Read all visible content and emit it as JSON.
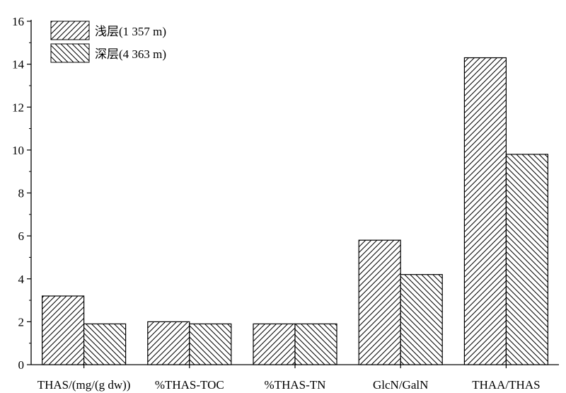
{
  "chart_data": {
    "type": "bar",
    "title": "",
    "xlabel": "",
    "ylabel": "",
    "categories": [
      "THAS/(mg/(g dw))",
      "%THAS-TOC",
      "%THAS-TN",
      "GlcN/GalN",
      "THAA/THAS"
    ],
    "series": [
      {
        "name": "浅层(1 357 m)",
        "values": [
          3.2,
          2.0,
          1.9,
          5.8,
          14.3
        ],
        "pattern": "forward-hatch"
      },
      {
        "name": "深层(4 363 m)",
        "values": [
          1.9,
          1.9,
          1.9,
          4.2,
          9.8
        ],
        "pattern": "back-hatch"
      }
    ],
    "ylim": [
      0,
      16
    ],
    "yticks": [
      0,
      2,
      4,
      6,
      8,
      10,
      12,
      14,
      16
    ],
    "yticklabels": [
      "0",
      "2",
      "4",
      "6",
      "8",
      "10",
      "12",
      "14",
      "16"
    ],
    "grid": false,
    "legend_position": "top-left",
    "colors": {
      "stroke": "#000000",
      "fill": "#ffffff"
    }
  }
}
